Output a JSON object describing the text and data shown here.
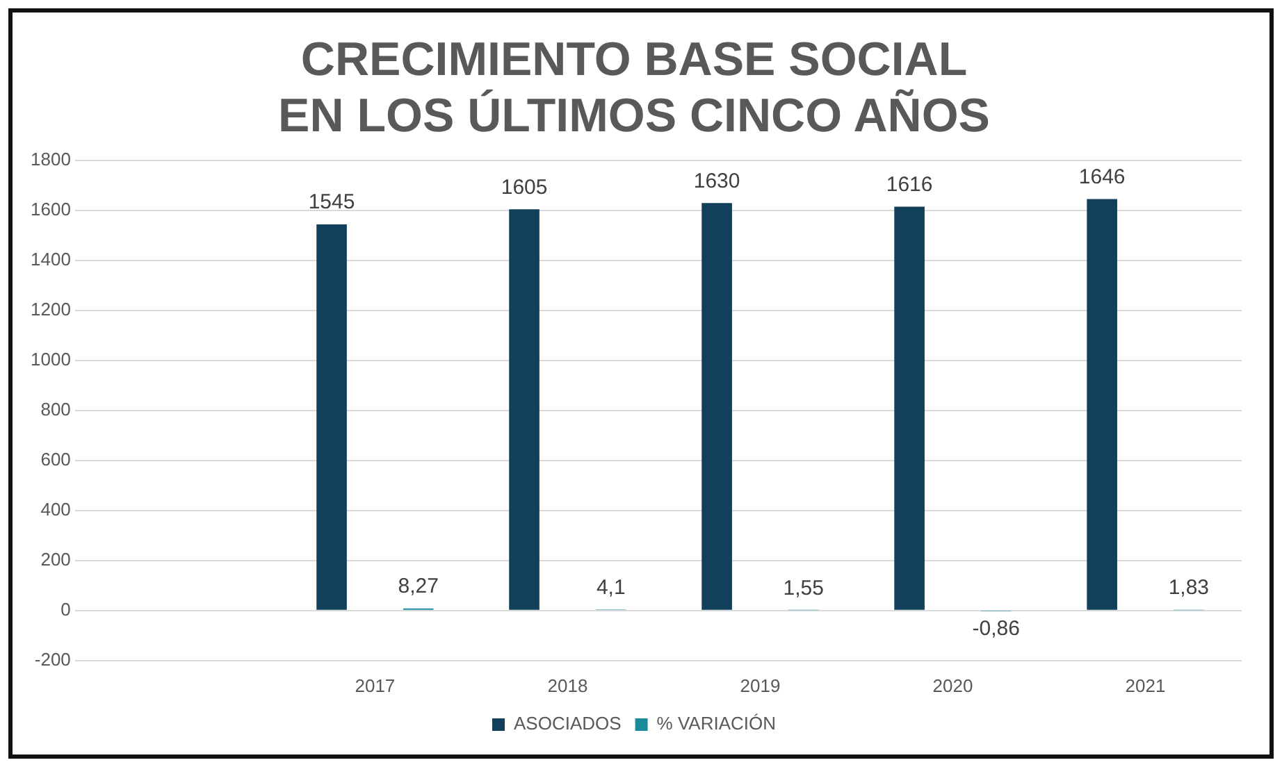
{
  "chart_data": {
    "type": "bar",
    "title": "CRECIMIENTO BASE SOCIAL EN LOS ÚLTIMOS CINCO AÑOS",
    "categories": [
      null,
      "2017",
      "2018",
      "2019",
      "2020",
      "2021"
    ],
    "series": [
      {
        "name": "ASOCIADOS",
        "color": "#123f5a",
        "values": [
          null,
          1545,
          1605,
          1630,
          1616,
          1646
        ],
        "value_labels": [
          null,
          "1545",
          "1605",
          "1630",
          "1616",
          "1646"
        ]
      },
      {
        "name": "% VARIACIÓN",
        "color": "#1b8a9a",
        "values": [
          null,
          8.27,
          4.1,
          1.55,
          -0.86,
          1.83
        ],
        "value_labels": [
          null,
          "8,27",
          "4,1",
          "1,55",
          "-0,86",
          "1,83"
        ]
      }
    ],
    "ylim": [
      -200,
      1800
    ],
    "yticks": [
      -200,
      0,
      200,
      400,
      600,
      800,
      1000,
      1200,
      1400,
      1600,
      1800
    ],
    "grid": "y",
    "legend": "bottom"
  }
}
